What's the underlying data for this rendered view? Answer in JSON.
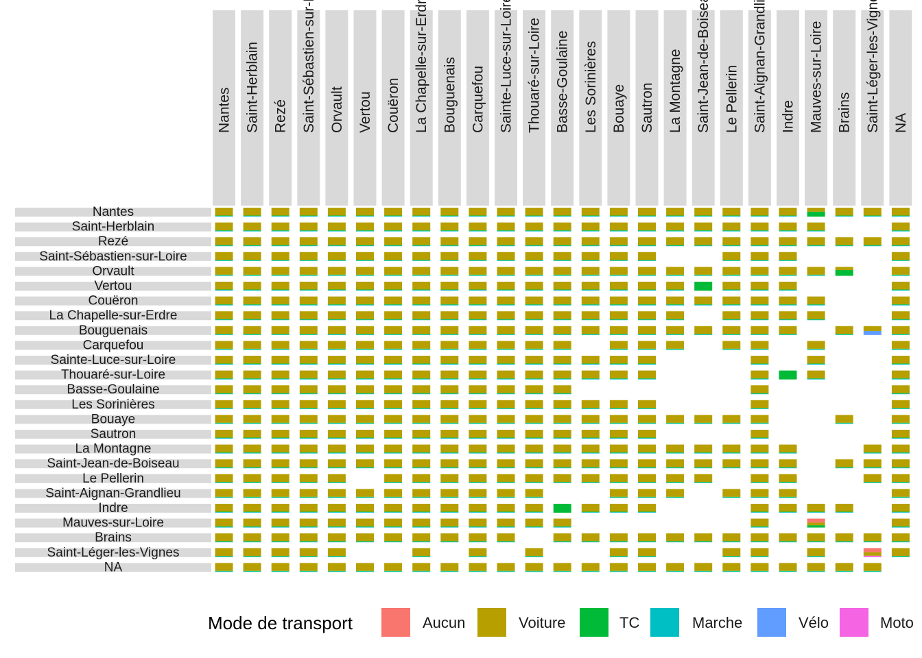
{
  "chart_data": {
    "type": "bar",
    "subtype": "faceted-stacked-proportion-grid",
    "facet_rows": [
      "Nantes",
      "Saint-Herblain",
      "Rezé",
      "Saint-Sébastien-sur-Loire",
      "Orvault",
      "Vertou",
      "Couëron",
      "La Chapelle-sur-Erdre",
      "Bouguenais",
      "Carquefou",
      "Sainte-Luce-sur-Loire",
      "Thouaré-sur-Loire",
      "Basse-Goulaine",
      "Les Sorinières",
      "Bouaye",
      "Sautron",
      "La Montagne",
      "Saint-Jean-de-Boiseau",
      "Le Pellerin",
      "Saint-Aignan-Grandlieu",
      "Indre",
      "Mauves-sur-Loire",
      "Brains",
      "Saint-Léger-les-Vignes",
      "NA"
    ],
    "facet_cols": [
      "Nantes",
      "Saint-Herblain",
      "Rezé",
      "Saint-Sébastien-sur-Loire",
      "Orvault",
      "Vertou",
      "Couëron",
      "La Chapelle-sur-Erdre",
      "Bouguenais",
      "Carquefou",
      "Sainte-Luce-sur-Loire",
      "Thouaré-sur-Loire",
      "Basse-Goulaine",
      "Les Sorinières",
      "Bouaye",
      "Sautron",
      "La Montagne",
      "Saint-Jean-de-Boiseau",
      "Le Pellerin",
      "Saint-Aignan-Grandlieu",
      "Indre",
      "Mauves-sur-Loire",
      "Brains",
      "Saint-Léger-les-Vignes",
      "NA"
    ],
    "legend": {
      "title": "Mode de transport",
      "position": "bottom",
      "entries": [
        {
          "name": "Aucun",
          "color": "#F8766D"
        },
        {
          "name": "Voiture",
          "color": "#B79F00"
        },
        {
          "name": "TC",
          "color": "#00BA38"
        },
        {
          "name": "Marche",
          "color": "#00BFC4"
        },
        {
          "name": "Vélo",
          "color": "#619CFF"
        },
        {
          "name": "Moto",
          "color": "#F564E3"
        }
      ]
    },
    "presence": [
      "1111111111111111111111111",
      "1111111111111111111111001",
      "1111111111111111111111111",
      "1111111111111111001110001",
      "1111111111111111111111101",
      "1111111111111111111110001",
      "1111111111111111111111001",
      "1111111111111111101111001",
      "1111111111111111111110111",
      "1111111111111011101101001",
      "1111111111111111000101001",
      "1111111111111111000111001",
      "1111111111111000000100001",
      "1111111111111111000100001",
      "1111111111111111111100101",
      "1111111111111111000100001",
      "1111111111111111111110011",
      "1111111111111111111110111",
      "1111101111111111110110011",
      "1111111111110011101110001",
      "1111111111111111000111101",
      "1111111111111000000101001",
      "1111111111101111111111111",
      "1111100101010011001101011",
      "1111111111111111111111110"
    ],
    "special": [
      {
        "row": 0,
        "col": 21,
        "shares": {
          "Voiture": 0.45,
          "TC": 0.55
        }
      },
      {
        "row": 4,
        "col": 22,
        "shares": {
          "Voiture": 0.35,
          "TC": 0.65
        }
      },
      {
        "row": 5,
        "col": 17,
        "shares": {
          "TC": 1.0
        }
      },
      {
        "row": 8,
        "col": 23,
        "shares": {
          "Voiture": 0.55,
          "Vélo": 0.45
        }
      },
      {
        "row": 11,
        "col": 20,
        "shares": {
          "TC": 1.0
        }
      },
      {
        "row": 20,
        "col": 12,
        "shares": {
          "TC": 1.0
        }
      },
      {
        "row": 21,
        "col": 21,
        "shares": {
          "Aucun": 0.45,
          "Voiture": 0.3,
          "TC": 0.25
        }
      },
      {
        "row": 23,
        "col": 23,
        "shares": {
          "Aucun": 0.45,
          "Voiture": 0.4,
          "Moto": 0.15
        }
      }
    ],
    "default_shares": {
      "Voiture": 0.88,
      "TC": 0.06,
      "Marche": 0.06
    },
    "grid": false
  }
}
